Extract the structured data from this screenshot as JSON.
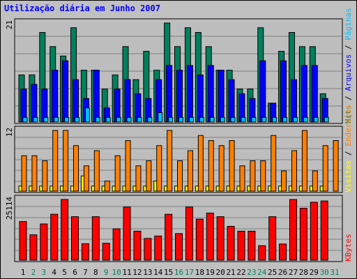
{
  "title": "Utilização diária em Junho 2007",
  "colors": {
    "hits": "#00805c",
    "files": "#0000ff",
    "pages": "#00c0ff",
    "visits": "#ffff00",
    "sites": "#ff8000",
    "kbytes": "#ff0000",
    "weekend_label": "#00805c",
    "weekday_label": "#000000"
  },
  "side_labels": {
    "top": [
      {
        "text": "Hits",
        "color": "#00805c"
      },
      {
        "text": " / ",
        "color": "#000000"
      },
      {
        "text": "Arquivos",
        "color": "#0000ff"
      },
      {
        "text": " / ",
        "color": "#000000"
      },
      {
        "text": "Páginas",
        "color": "#00c0ff"
      }
    ],
    "middle": [
      {
        "text": "Visitas",
        "color": "#ffff00"
      },
      {
        "text": " / ",
        "color": "#000000"
      },
      {
        "text": "Endereços",
        "color": "#ff8000"
      }
    ],
    "bottom": [
      {
        "text": "KBytes",
        "color": "#ff0000"
      }
    ]
  },
  "chart_data": [
    {
      "type": "bar",
      "panel": "top",
      "ymax_label": "21",
      "ylim": [
        0,
        21
      ],
      "categories": [
        "1",
        "2",
        "3",
        "4",
        "5",
        "6",
        "7",
        "8",
        "9",
        "10",
        "11",
        "12",
        "13",
        "14",
        "15",
        "16",
        "17",
        "18",
        "19",
        "20",
        "21",
        "22",
        "23",
        "24",
        "25",
        "26",
        "27",
        "28",
        "29",
        "30",
        "31"
      ],
      "weekend": [
        2,
        3,
        9,
        10,
        16,
        17,
        23,
        24,
        30,
        31
      ],
      "series": [
        {
          "name": "Hits",
          "values": [
            10,
            10,
            19,
            16,
            14,
            20,
            11,
            11,
            7,
            10,
            16,
            9,
            15,
            11,
            21,
            16,
            20,
            19,
            16,
            11,
            11,
            7,
            7,
            20,
            4,
            15,
            19,
            16,
            16,
            6,
            0
          ]
        },
        {
          "name": "Arquivos",
          "values": [
            7,
            8,
            7,
            11,
            13,
            9,
            5,
            11,
            3,
            7,
            9,
            6,
            5,
            9,
            12,
            11,
            12,
            10,
            12,
            11,
            9,
            6,
            5,
            13,
            4,
            13,
            9,
            12,
            12,
            5,
            0
          ]
        },
        {
          "name": "Páginas",
          "values": [
            1,
            1,
            1,
            1,
            1,
            1,
            3,
            1,
            1,
            1,
            1,
            1,
            1,
            2,
            1,
            1,
            1,
            1,
            1,
            1,
            1,
            1,
            1,
            1,
            1,
            1,
            1,
            1,
            1,
            1,
            0
          ]
        }
      ]
    },
    {
      "type": "bar",
      "panel": "middle",
      "ymax_label": "12",
      "ylim": [
        0,
        12
      ],
      "categories": [
        "1",
        "2",
        "3",
        "4",
        "5",
        "6",
        "7",
        "8",
        "9",
        "10",
        "11",
        "12",
        "13",
        "14",
        "15",
        "16",
        "17",
        "18",
        "19",
        "20",
        "21",
        "22",
        "23",
        "24",
        "25",
        "26",
        "27",
        "28",
        "29",
        "30",
        "31"
      ],
      "series": [
        {
          "name": "Visitas",
          "values": [
            1,
            1,
            1,
            1,
            1,
            1,
            3,
            1,
            1,
            1,
            1,
            1,
            1,
            2,
            1,
            1,
            1,
            1,
            1,
            1,
            1,
            1,
            1,
            1,
            1,
            1,
            1,
            1,
            1,
            1,
            0
          ]
        },
        {
          "name": "Endereços",
          "values": [
            7,
            7,
            6,
            12,
            12,
            9,
            5,
            8,
            2,
            7,
            10,
            5,
            6,
            9,
            12,
            6,
            8,
            11,
            10,
            9,
            10,
            5,
            6,
            6,
            11,
            4,
            8,
            12,
            4,
            9,
            10
          ]
        }
      ]
    },
    {
      "type": "bar",
      "panel": "bottom",
      "ymax_label": "25114",
      "ylim": [
        0,
        25114
      ],
      "categories": [
        "1",
        "2",
        "3",
        "4",
        "5",
        "6",
        "7",
        "8",
        "9",
        "10",
        "11",
        "12",
        "13",
        "14",
        "15",
        "16",
        "17",
        "18",
        "19",
        "20",
        "21",
        "22",
        "23",
        "24",
        "25",
        "26",
        "27",
        "28",
        "29",
        "30",
        "31"
      ],
      "series": [
        {
          "name": "KBytes",
          "values": [
            16000,
            10500,
            15000,
            19000,
            25114,
            18000,
            6800,
            18000,
            7000,
            13000,
            22000,
            12000,
            9000,
            10000,
            19000,
            11000,
            22000,
            17000,
            19500,
            18000,
            14000,
            12000,
            12000,
            6000,
            18000,
            6700,
            25114,
            21500,
            24000,
            24500,
            0
          ]
        }
      ]
    }
  ]
}
